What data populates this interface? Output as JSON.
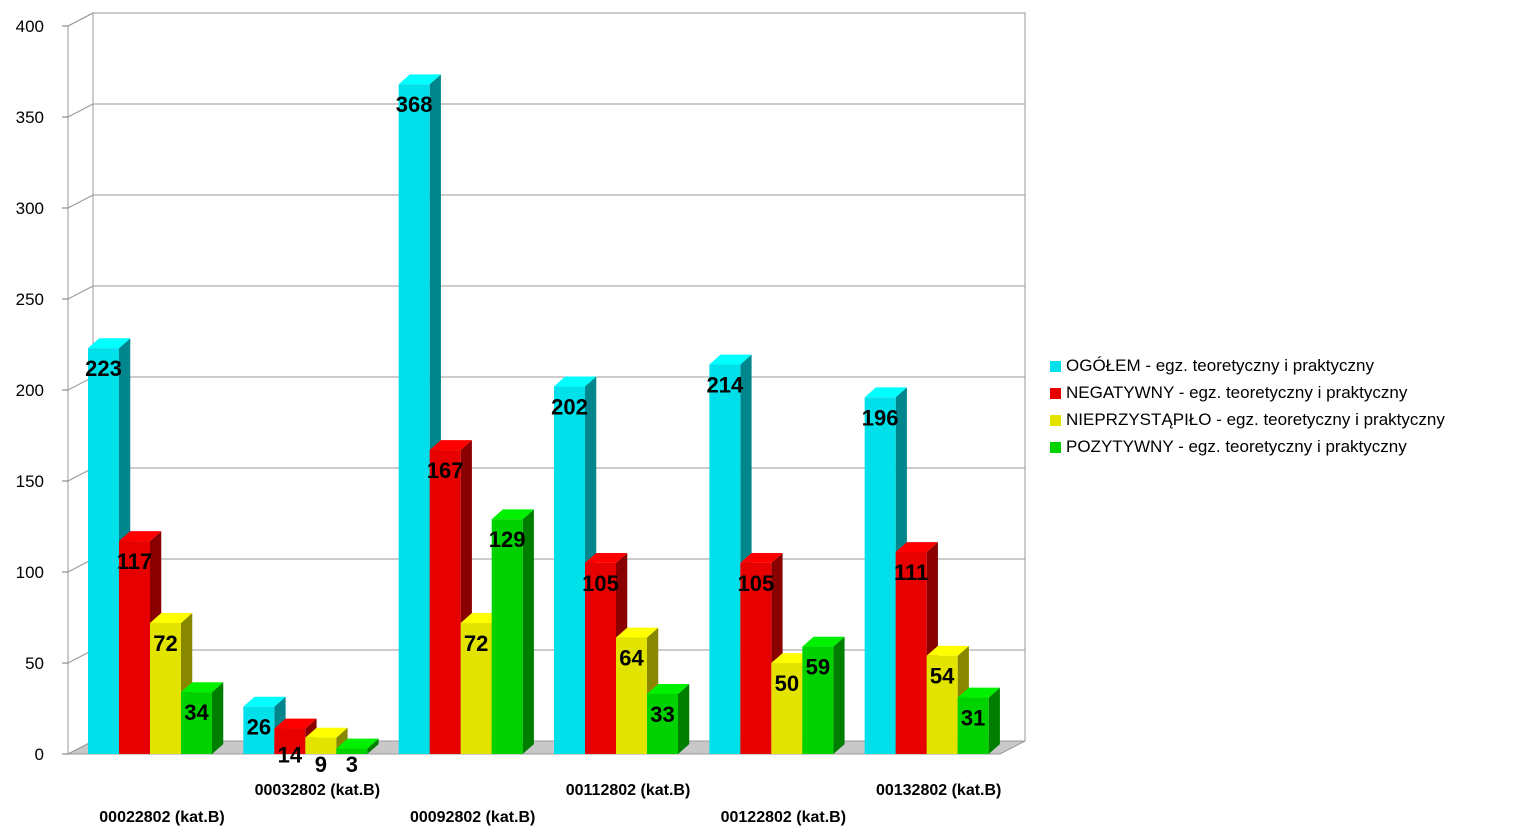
{
  "chart_data": {
    "type": "bar",
    "categories": [
      "00022802 (kat.B)",
      "00032802 (kat.B)",
      "00092802 (kat.B)",
      "00112802 (kat.B)",
      "00122802 (kat.B)",
      "00132802 (kat.B)"
    ],
    "series": [
      {
        "name": "OGÓŁEM - egz. teoretyczny i praktyczny",
        "color": "#00e0ea",
        "values": [
          223,
          26,
          368,
          202,
          214,
          196
        ]
      },
      {
        "name": "NEGATYWNY - egz. teoretyczny i praktyczny",
        "color": "#e60000",
        "values": [
          117,
          14,
          167,
          105,
          105,
          111
        ]
      },
      {
        "name": "NIEPRZYSTĄPIŁO - egz. teoretyczny i praktyczny",
        "color": "#e3e300",
        "values": [
          72,
          9,
          72,
          64,
          50,
          54
        ]
      },
      {
        "name": "POZYTYWNY - egz. teoretyczny i praktyczny",
        "color": "#00d200",
        "values": [
          34,
          3,
          129,
          33,
          59,
          31
        ]
      }
    ],
    "y_ticks": [
      "0",
      "50",
      "100",
      "150",
      "200",
      "250",
      "300",
      "350",
      "400"
    ],
    "ylim": [
      0,
      400
    ],
    "grid": true,
    "legend_position": "right",
    "title": "",
    "xlabel": "",
    "ylabel": ""
  }
}
